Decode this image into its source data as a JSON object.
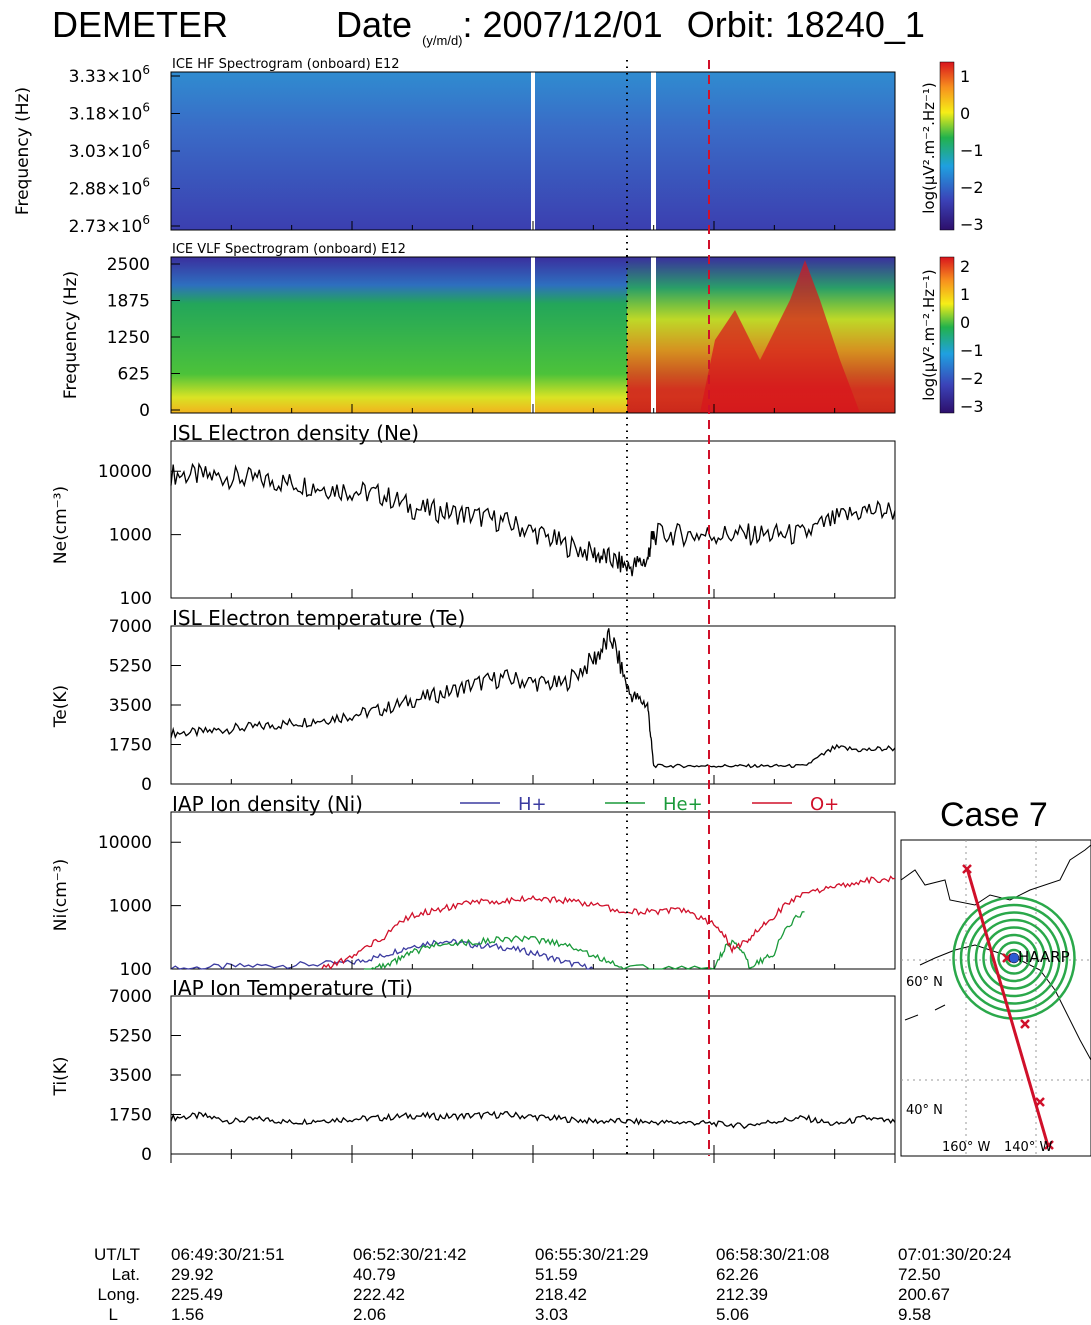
{
  "header": {
    "mission": "DEMETER",
    "date_label": "Date",
    "date_sub": "(y/m/d)",
    "date_value": ": 2007/12/01",
    "orbit_label": "Orbit:",
    "orbit_value": "18240_1"
  },
  "case_label": "Case 7",
  "chart_data": [
    {
      "type": "heatmap",
      "title": "ICE HF Spectrogram (onboard) E12",
      "ylabel": "Frequency (Hz)",
      "ytick_mantissas": [
        "3.33",
        "3.18",
        "3.03",
        "2.88",
        "2.73"
      ],
      "ytick_exponent": "6",
      "ylim_hz": [
        2730000,
        3330000
      ],
      "colorbar": {
        "label": "log(μV².m⁻².Hz⁻¹)",
        "ticks": [
          "1",
          "0",
          "−1",
          "−2",
          "−3"
        ],
        "range": [
          -3,
          1
        ]
      },
      "colors": [
        "#2d0f6b",
        "#3b43b8",
        "#1fa0e0",
        "#22b24c",
        "#f6ee17",
        "#f7901e",
        "#d9141d"
      ]
    },
    {
      "type": "heatmap",
      "title": "ICE VLF Spectrogram (onboard) E12",
      "ylabel": "Frequency (Hz)",
      "yticks": [
        "2500",
        "1875",
        "1250",
        "625",
        "0"
      ],
      "ylim_hz": [
        0,
        2500
      ],
      "colorbar": {
        "label": "log(μV².m⁻².Hz⁻¹)",
        "ticks": [
          "2",
          "1",
          "0",
          "−1",
          "−2",
          "−3"
        ],
        "range": [
          -3,
          2
        ]
      }
    },
    {
      "type": "line",
      "title": "ISL Electron density (Ne)",
      "ylabel": "Ne(cm⁻³)",
      "yscale": "log",
      "yticks": [
        "10000",
        "1000",
        "100"
      ],
      "ylim": [
        100,
        30000
      ],
      "xlim": [
        0,
        12
      ],
      "series": [
        {
          "color": "#000000",
          "x": [
            0,
            0.5,
            1,
            1.5,
            2,
            2.5,
            3,
            3.5,
            4,
            4.5,
            5,
            5.5,
            6,
            6.5,
            7,
            7.3,
            7.6,
            7.9,
            8.0,
            8.5,
            9.0,
            9.5,
            10.0,
            10.5,
            11.0,
            11.5,
            12.0
          ],
          "values": [
            9000,
            8500,
            8000,
            7300,
            6500,
            5600,
            4900,
            4200,
            2600,
            2300,
            2000,
            1600,
            1100,
            700,
            500,
            400,
            300,
            400,
            1000,
            1000,
            1000,
            1000,
            1000,
            1000,
            1700,
            2400,
            2400
          ]
        }
      ]
    },
    {
      "type": "line",
      "title": "ISL Electron temperature (Te)",
      "ylabel": "Te(K)",
      "yticks": [
        "7000",
        "5250",
        "3500",
        "1750",
        "0"
      ],
      "ylim": [
        0,
        7000
      ],
      "xlim": [
        0,
        12
      ],
      "series": [
        {
          "color": "#000000",
          "x": [
            0,
            0.5,
            1,
            1.5,
            2,
            2.5,
            3,
            3.5,
            4,
            4.5,
            5,
            5.5,
            6,
            6.5,
            7,
            7.3,
            7.6,
            7.9,
            8.0,
            8.5,
            9.0,
            9.5,
            10.0,
            10.5,
            11.0,
            11.5,
            12.0
          ],
          "values": [
            2250,
            2300,
            2450,
            2550,
            2700,
            2850,
            3050,
            3300,
            3700,
            4000,
            4400,
            4700,
            4500,
            4400,
            5500,
            6500,
            4000,
            3500,
            800,
            800,
            800,
            800,
            800,
            800,
            1600,
            1500,
            1600
          ]
        }
      ]
    },
    {
      "type": "line",
      "title": "IAP Ion density (Ni)",
      "ylabel": "Ni(cm⁻³)",
      "yscale": "log",
      "yticks": [
        "10000",
        "1000",
        "100"
      ],
      "ylim": [
        100,
        30000
      ],
      "xlim": [
        0,
        12
      ],
      "legend": [
        {
          "name": "H+",
          "color": "#3b3ba0"
        },
        {
          "name": "He+",
          "color": "#1a9a3a"
        },
        {
          "name": "O+",
          "color": "#d0102a"
        }
      ],
      "series": [
        {
          "name": "H+",
          "color": "#3b3ba0",
          "x": [
            0,
            1,
            2,
            3,
            3.5,
            4,
            4.5,
            5,
            5.5,
            6,
            6.5,
            7.0
          ],
          "values": [
            100,
            110,
            115,
            125,
            160,
            230,
            280,
            240,
            220,
            180,
            130,
            100
          ]
        },
        {
          "name": "He+",
          "color": "#1a9a3a",
          "x": [
            3.2,
            3.6,
            4.0,
            4.5,
            5.0,
            5.5,
            6.0,
            6.5,
            7.0,
            7.5,
            9.0,
            9.3,
            9.6,
            10.0,
            10.5
          ],
          "values": [
            100,
            110,
            180,
            260,
            260,
            300,
            290,
            250,
            160,
            105,
            100,
            280,
            100,
            180,
            800
          ]
        },
        {
          "name": "O+",
          "color": "#d0102a",
          "x": [
            2.5,
            3.0,
            3.5,
            4.0,
            4.5,
            5.0,
            5.5,
            6.0,
            6.5,
            7.0,
            7.5,
            8.0,
            8.5,
            9.0,
            9.3,
            9.6,
            10.0,
            10.5,
            11.0,
            11.5,
            12.0
          ],
          "values": [
            100,
            150,
            300,
            700,
            900,
            1100,
            1200,
            1300,
            1200,
            1050,
            800,
            800,
            850,
            500,
            200,
            300,
            700,
            1500,
            2000,
            2500,
            2700
          ]
        }
      ]
    },
    {
      "type": "line",
      "title": "IAP Ion Temperature (Ti)",
      "ylabel": "Ti(K)",
      "yticks": [
        "7000",
        "5250",
        "3500",
        "1750",
        "0"
      ],
      "ylim": [
        0,
        7000
      ],
      "xlim": [
        0,
        12
      ],
      "series": [
        {
          "color": "#000000",
          "x": [
            0,
            0.5,
            1,
            1.5,
            2,
            2.5,
            3,
            3.5,
            4,
            4.5,
            5,
            5.5,
            6,
            6.5,
            7,
            7.5,
            8,
            8.5,
            9,
            9.5,
            10,
            10.5,
            11,
            11.5,
            12
          ],
          "values": [
            1600,
            1700,
            1450,
            1550,
            1400,
            1500,
            1550,
            1600,
            1700,
            1650,
            1700,
            1750,
            1650,
            1550,
            1450,
            1450,
            1400,
            1400,
            1350,
            1250,
            1450,
            1600,
            1300,
            1600,
            1400
          ]
        }
      ]
    }
  ],
  "time_axis": {
    "row_labels": [
      "UT/LT",
      "Lat.",
      "Long.",
      "L"
    ],
    "columns": [
      {
        "utlt": "06:49:30/21:51",
        "lat": "29.92",
        "long": "225.49",
        "l": "1.56"
      },
      {
        "utlt": "06:52:30/21:42",
        "lat": "40.79",
        "long": "222.42",
        "l": "2.06"
      },
      {
        "utlt": "06:55:30/21:29",
        "lat": "51.59",
        "long": "218.42",
        "l": "3.03"
      },
      {
        "utlt": "06:58:30/21:08",
        "lat": "62.26",
        "long": "212.39",
        "l": "5.06"
      },
      {
        "utlt": "07:01:30/20:24",
        "lat": "72.50",
        "long": "200.67",
        "l": "9.58"
      }
    ]
  },
  "map": {
    "site_label": "HAARP",
    "lat_labels": [
      "60° N",
      "40° N"
    ],
    "lon_labels": [
      "160° W",
      "140° W"
    ],
    "track_color": "#d0102a",
    "ring_color": "#2aa84a",
    "site_color": "#2f5bd3"
  }
}
